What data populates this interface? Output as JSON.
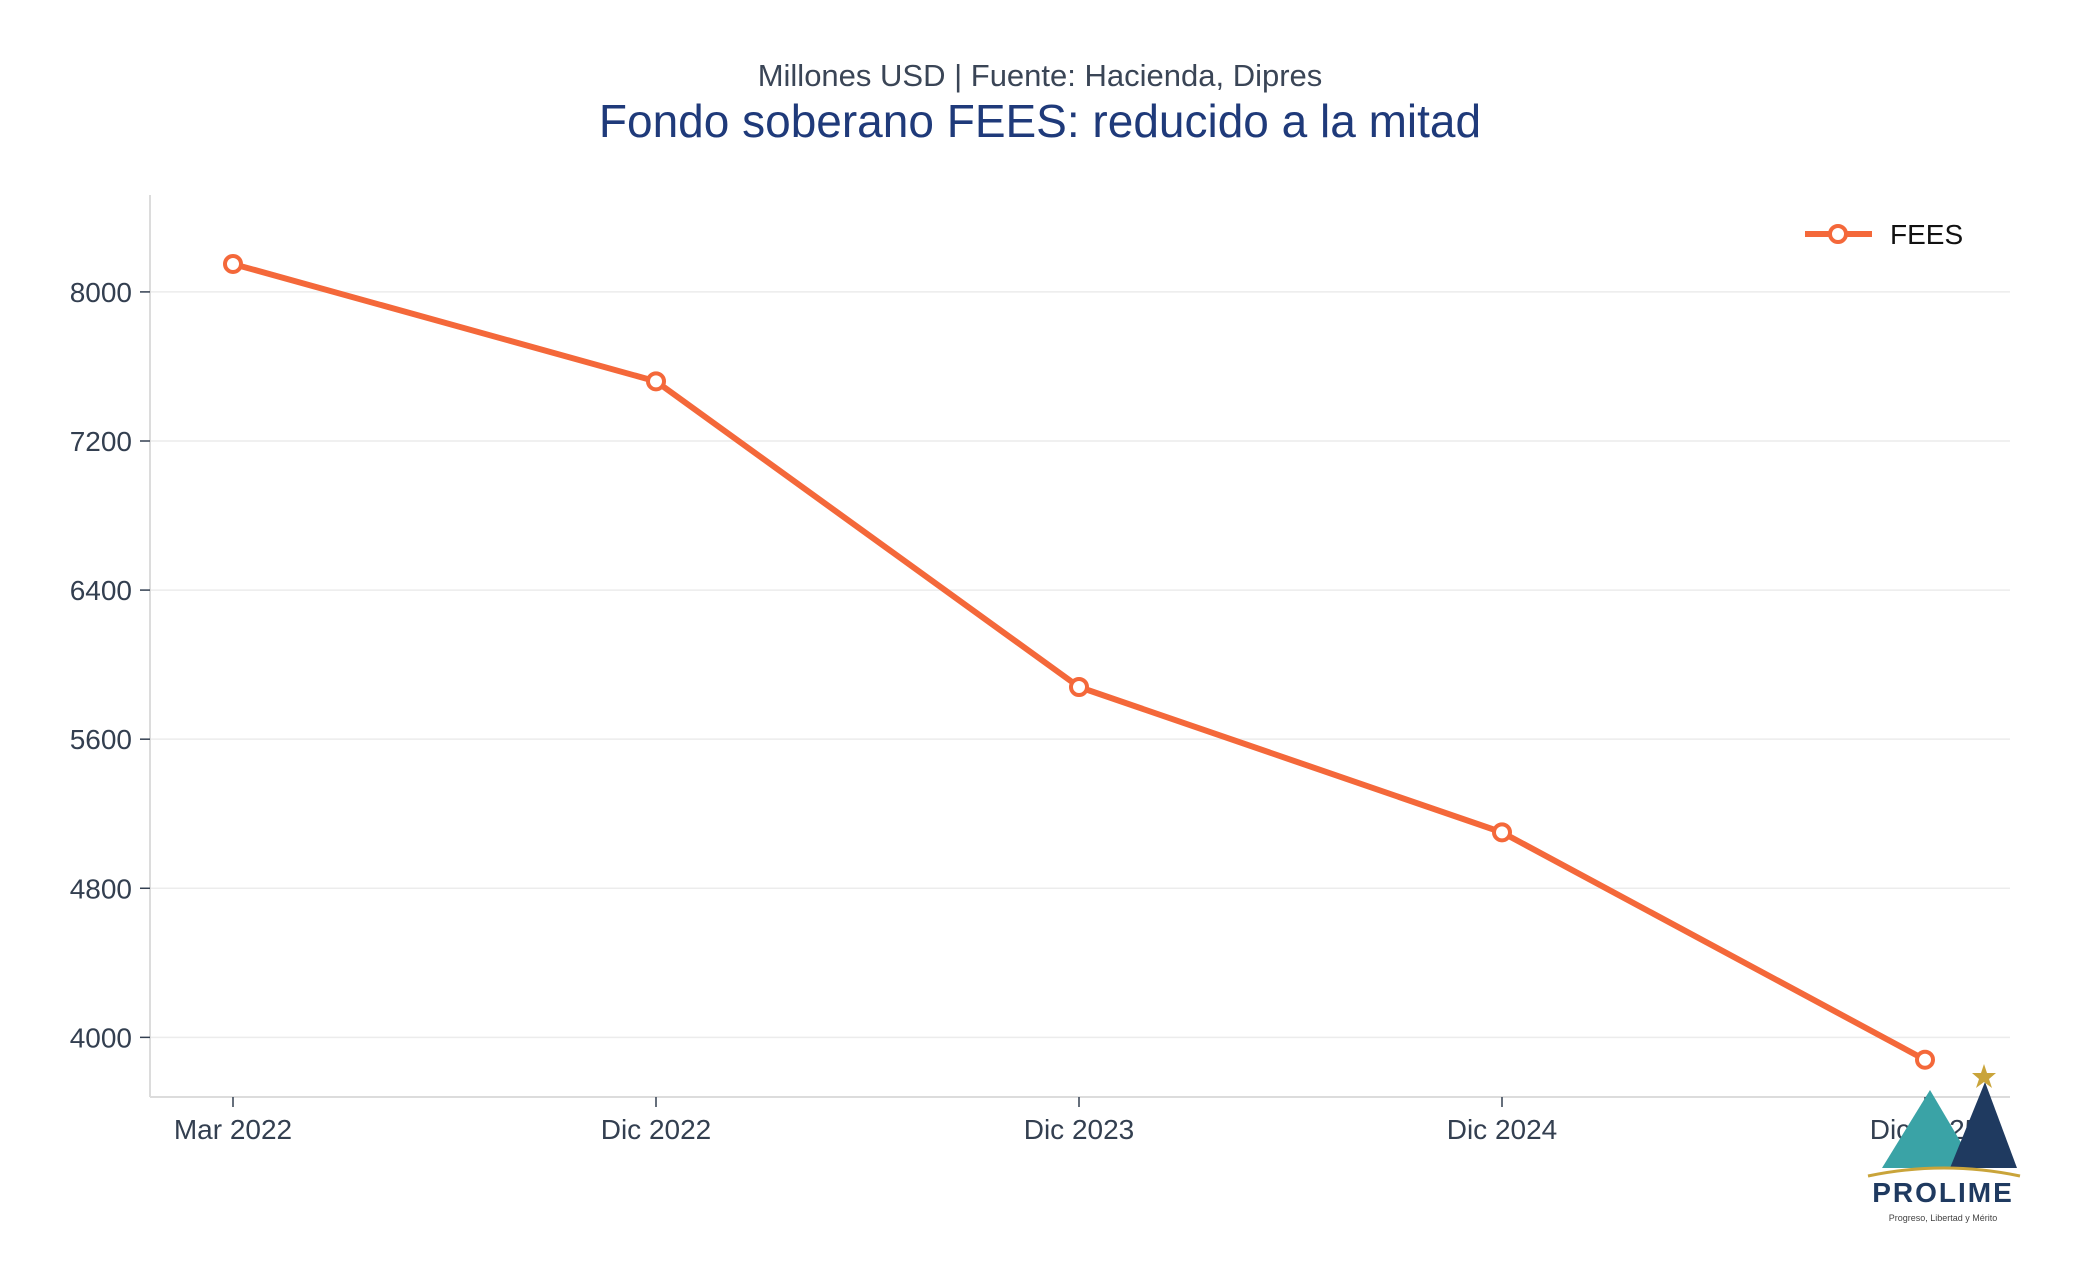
{
  "chart_data": {
    "type": "line",
    "subtitle": "Millones USD | Fuente: Hacienda, Dipres",
    "title": "Fondo soberano FEES: reducido a la mitad",
    "xlabel": "",
    "ylabel": "",
    "categories": [
      "Mar 2022",
      "Dic 2022",
      "Dic 2023",
      "Dic 2024",
      "Dic 2025"
    ],
    "series": [
      {
        "name": "FEES",
        "color": "#f4683a",
        "values": [
          8150,
          7520,
          5880,
          5100,
          3880
        ]
      }
    ],
    "ylim": [
      3680,
      8520
    ],
    "yticks": [
      4000,
      4800,
      5600,
      6400,
      7200,
      8000
    ],
    "grid": true,
    "legend_position": "top-right"
  },
  "logo": {
    "name": "PROLIME",
    "tagline": "Progreso, Libertad y Mérito",
    "colors": {
      "teal": "#3aa3a6",
      "navy": "#1f3a60",
      "gold": "#c9a43a"
    }
  }
}
